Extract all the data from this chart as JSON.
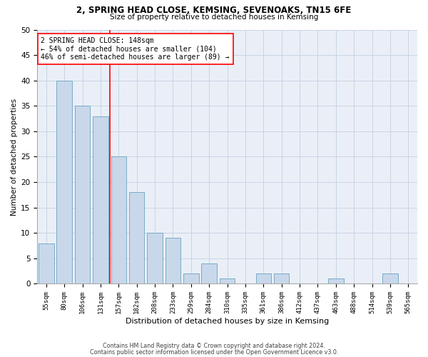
{
  "title1": "2, SPRING HEAD CLOSE, KEMSING, SEVENOAKS, TN15 6FE",
  "title2": "Size of property relative to detached houses in Kemsing",
  "xlabel": "Distribution of detached houses by size in Kemsing",
  "ylabel": "Number of detached properties",
  "bar_labels": [
    "55sqm",
    "80sqm",
    "106sqm",
    "131sqm",
    "157sqm",
    "182sqm",
    "208sqm",
    "233sqm",
    "259sqm",
    "284sqm",
    "310sqm",
    "335sqm",
    "361sqm",
    "386sqm",
    "412sqm",
    "437sqm",
    "463sqm",
    "488sqm",
    "514sqm",
    "539sqm",
    "565sqm"
  ],
  "bar_values": [
    8,
    40,
    35,
    33,
    25,
    18,
    10,
    9,
    2,
    4,
    1,
    0,
    2,
    2,
    0,
    0,
    1,
    0,
    0,
    2,
    0
  ],
  "bar_color": "#c8d8ea",
  "bar_edge_color": "#7aaac8",
  "property_line_color": "red",
  "annotation_text": "2 SPRING HEAD CLOSE: 148sqm\n← 54% of detached houses are smaller (104)\n46% of semi-detached houses are larger (89) →",
  "annotation_box_color": "white",
  "annotation_box_edge": "red",
  "ylim": [
    0,
    50
  ],
  "yticks": [
    0,
    5,
    10,
    15,
    20,
    25,
    30,
    35,
    40,
    45,
    50
  ],
  "grid_color": "#c8d4e4",
  "bg_color": "#eaeff7",
  "footer1": "Contains HM Land Registry data © Crown copyright and database right 2024.",
  "footer2": "Contains public sector information licensed under the Open Government Licence v3.0."
}
